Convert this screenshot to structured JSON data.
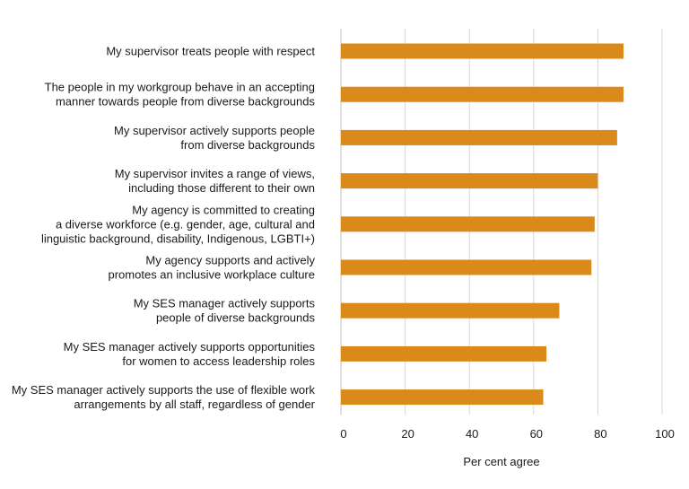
{
  "chart_data": {
    "type": "bar",
    "orientation": "horizontal",
    "categories": [
      [
        "My supervisor treats people with respect"
      ],
      [
        "The people in my workgroup behave in an accepting",
        "manner towards people from diverse backgrounds"
      ],
      [
        "My supervisor actively supports people",
        "from diverse backgrounds"
      ],
      [
        "My supervisor invites a range of views,",
        "including those different to their own"
      ],
      [
        "My agency is committed to creating",
        "a diverse workforce (e.g. gender, age, cultural and",
        "linguistic background, disability, Indigenous, LGBTI+)"
      ],
      [
        "My agency supports and actively",
        "promotes an inclusive workplace culture"
      ],
      [
        "My SES manager actively supports",
        "people of diverse backgrounds"
      ],
      [
        "My SES manager actively supports opportunities",
        "for women to access leadership roles"
      ],
      [
        "My SES manager actively supports the use of flexible work",
        "arrangements by all staff, regardless of gender"
      ]
    ],
    "values": [
      88,
      88,
      86,
      80,
      79,
      78,
      68,
      64,
      63
    ],
    "xlabel": "Per cent agree",
    "ylabel": "",
    "xlim": [
      0,
      100
    ],
    "ticks": [
      0,
      20,
      40,
      60,
      80,
      100
    ],
    "grid": true,
    "bar_color": "#d98a1a"
  }
}
